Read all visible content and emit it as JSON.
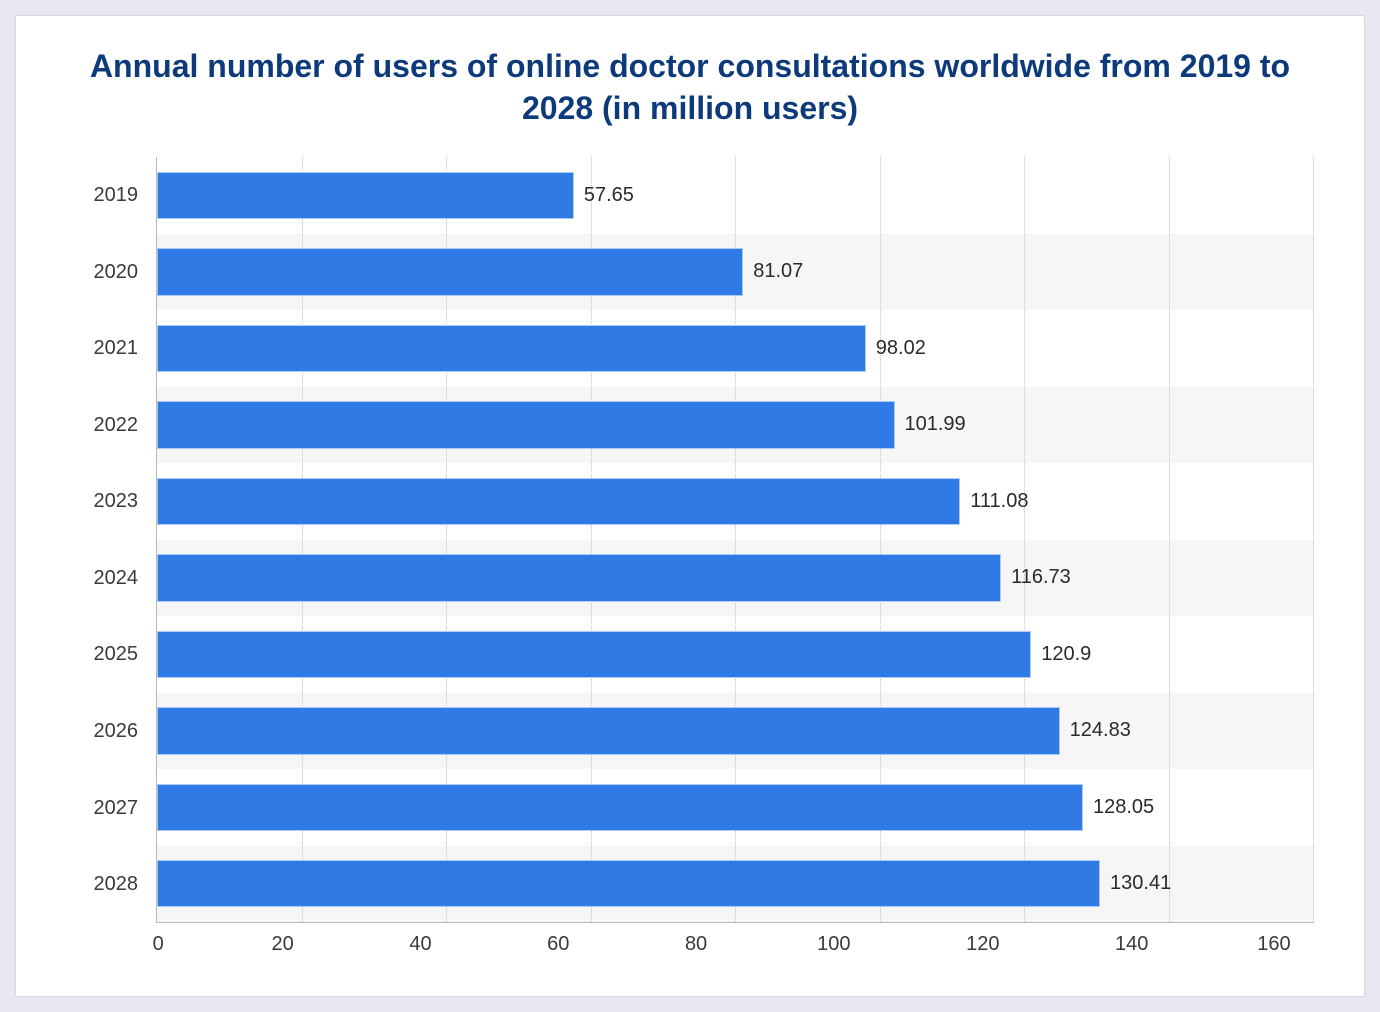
{
  "chart": {
    "type": "horizontal-bar",
    "title": "Annual number of users of online doctor consultations worldwide from 2019 to 2028 (in million users)",
    "title_color": "#0d3a7a",
    "title_fontsize": 32,
    "title_fontweight": 800,
    "categories": [
      "2019",
      "2020",
      "2021",
      "2022",
      "2023",
      "2024",
      "2025",
      "2026",
      "2027",
      "2028"
    ],
    "values": [
      57.65,
      81.07,
      98.02,
      101.99,
      111.08,
      116.73,
      120.9,
      124.83,
      128.05,
      130.41
    ],
    "value_labels": [
      "57.65",
      "81.07",
      "98.02",
      "101.99",
      "111.08",
      "116.73",
      "120.9",
      "124.83",
      "128.05",
      "130.41"
    ],
    "bar_color": "#2f7ae5",
    "bar_border_color": "rgba(255,255,255,0.6)",
    "bar_height_ratio": 0.62,
    "xlim": [
      0,
      160
    ],
    "xtick_step": 20,
    "xticks": [
      "0",
      "20",
      "40",
      "60",
      "80",
      "100",
      "120",
      "140",
      "160"
    ],
    "axis_font_color": "#3a3a3a",
    "axis_fontsize": 20,
    "value_label_fontsize": 20,
    "value_label_color": "#2a2a2a",
    "grid_color_dotted": "#c4c4c4",
    "axis_line_color": "#b8b8b8",
    "stripe_colors": [
      "#ffffff",
      "#f6f6f6"
    ],
    "page_background": "#e8e6f0",
    "card_background": "#ffffff",
    "card_border": "#d8d6e6"
  }
}
